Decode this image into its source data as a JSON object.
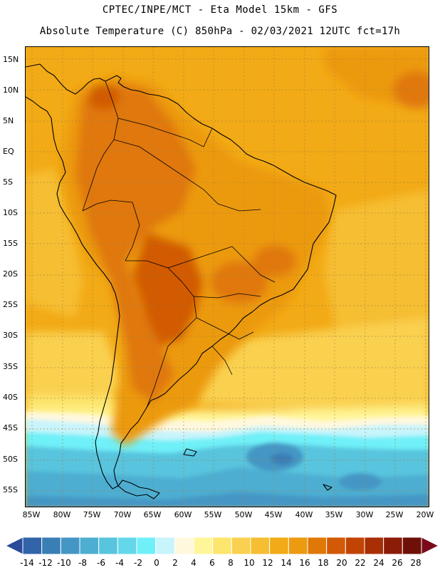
{
  "header": {
    "line1": "CPTEC/INPE/MCT -  Eta Model 15km - GFS",
    "line2": "Absolute Temperature (C) 850hPa - 02/03/2021 12UTC fct=17h"
  },
  "map": {
    "latitude_labels": [
      "15N",
      "10N",
      "5N",
      "EQ",
      "5S",
      "10S",
      "15S",
      "20S",
      "25S",
      "30S",
      "35S",
      "40S",
      "45S",
      "50S",
      "55S"
    ],
    "longitude_labels": [
      "85W",
      "80W",
      "75W",
      "70W",
      "65W",
      "60W",
      "55W",
      "50W",
      "45W",
      "40W",
      "35W",
      "30W",
      "25W",
      "20W"
    ]
  },
  "colorbar": {
    "labels": [
      "-14",
      "-12",
      "-10",
      "-8",
      "-6",
      "-4",
      "-2",
      "0",
      "2",
      "4",
      "6",
      "8",
      "10",
      "12",
      "14",
      "16",
      "18",
      "20",
      "22",
      "24",
      "26",
      "28"
    ],
    "colors": [
      "#2a4a9a",
      "#3164a8",
      "#3a7eb6",
      "#4496c4",
      "#4eaed2",
      "#58c4de",
      "#64d8ea",
      "#6ff0f8",
      "#c8f4fc",
      "#fff8de",
      "#fff69a",
      "#fde66e",
      "#fad050",
      "#f6be32",
      "#f2aa16",
      "#ec9a10",
      "#e07808",
      "#d25a06",
      "#c04404",
      "#a82e06",
      "#8c1c08",
      "#6e1008",
      "#7a0a1a"
    ]
  }
}
